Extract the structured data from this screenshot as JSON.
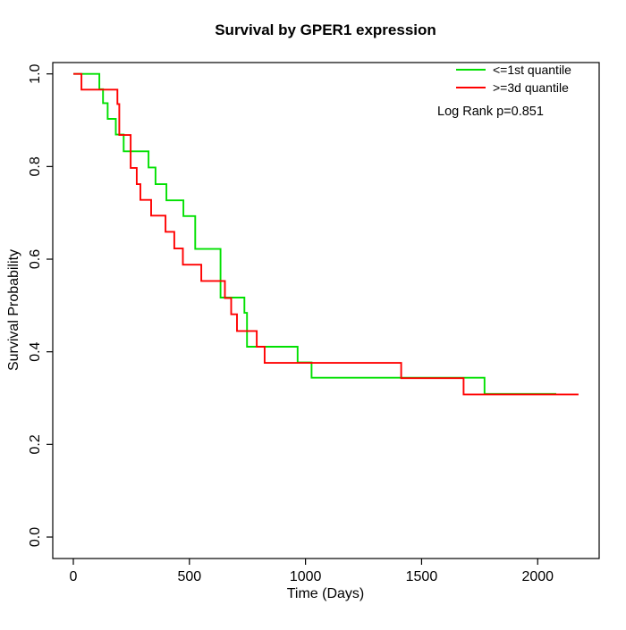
{
  "chart_data": {
    "type": "line",
    "subtype": "kaplan-meier-step",
    "title": "Survival by GPER1 expression",
    "xlabel": "Time (Days)",
    "ylabel": "Survival Probability",
    "xlim": [
      0,
      2200
    ],
    "ylim": [
      0.0,
      1.0
    ],
    "grid": false,
    "x_ticks": [
      0,
      500,
      1000,
      1500,
      2000
    ],
    "y_ticks": [
      "0.0",
      "0.2",
      "0.4",
      "0.6",
      "0.8",
      "1.0"
    ],
    "legend_position": "top-right",
    "annotation": "Log Rank p=0.851",
    "series": [
      {
        "name": "<=1st quantile",
        "color": "#00e000",
        "start": [
          0,
          1.0
        ],
        "end_day": 2080,
        "steps": [
          [
            112,
            0.967
          ],
          [
            128,
            0.937
          ],
          [
            148,
            0.903
          ],
          [
            183,
            0.869
          ],
          [
            217,
            0.833
          ],
          [
            324,
            0.798
          ],
          [
            354,
            0.762
          ],
          [
            401,
            0.727
          ],
          [
            474,
            0.693
          ],
          [
            525,
            0.622
          ],
          [
            634,
            0.517
          ],
          [
            737,
            0.484
          ],
          [
            748,
            0.411
          ],
          [
            966,
            0.377
          ],
          [
            1026,
            0.344
          ],
          [
            1771,
            0.309
          ]
        ]
      },
      {
        "name": ">=3d quantile",
        "color": "#ff0000",
        "start": [
          0,
          1.0
        ],
        "end_day": 2176,
        "steps": [
          [
            35,
            0.966
          ],
          [
            190,
            0.935
          ],
          [
            198,
            0.868
          ],
          [
            247,
            0.797
          ],
          [
            273,
            0.762
          ],
          [
            289,
            0.728
          ],
          [
            335,
            0.694
          ],
          [
            397,
            0.659
          ],
          [
            435,
            0.623
          ],
          [
            472,
            0.588
          ],
          [
            551,
            0.553
          ],
          [
            653,
            0.516
          ],
          [
            680,
            0.481
          ],
          [
            705,
            0.445
          ],
          [
            790,
            0.411
          ],
          [
            824,
            0.376
          ],
          [
            1412,
            0.343
          ],
          [
            1681,
            0.308
          ]
        ]
      }
    ]
  }
}
